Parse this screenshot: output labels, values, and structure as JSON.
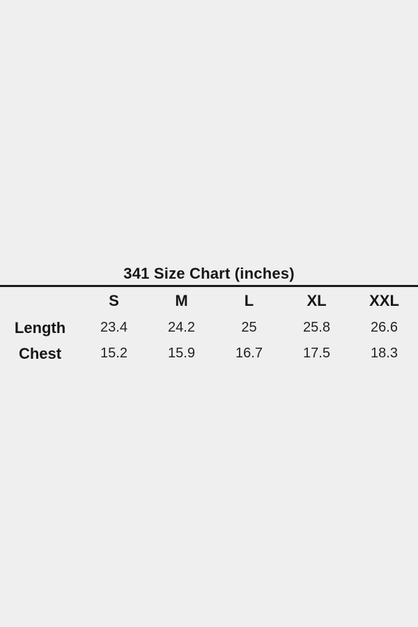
{
  "colors": {
    "background": "#efefef",
    "text": "#1d1d1d",
    "divider": "#1b1b1b"
  },
  "chart_data": {
    "type": "table",
    "title": "341 Size Chart (inches)",
    "units": "inches",
    "columns": [
      "",
      "S",
      "M",
      "L",
      "XL",
      "XXL"
    ],
    "rows": [
      [
        "Length",
        "23.4",
        "24.2",
        "25",
        "25.8",
        "26.6"
      ],
      [
        "Chest",
        "15.2",
        "15.9",
        "16.7",
        "17.5",
        "18.3"
      ]
    ]
  }
}
